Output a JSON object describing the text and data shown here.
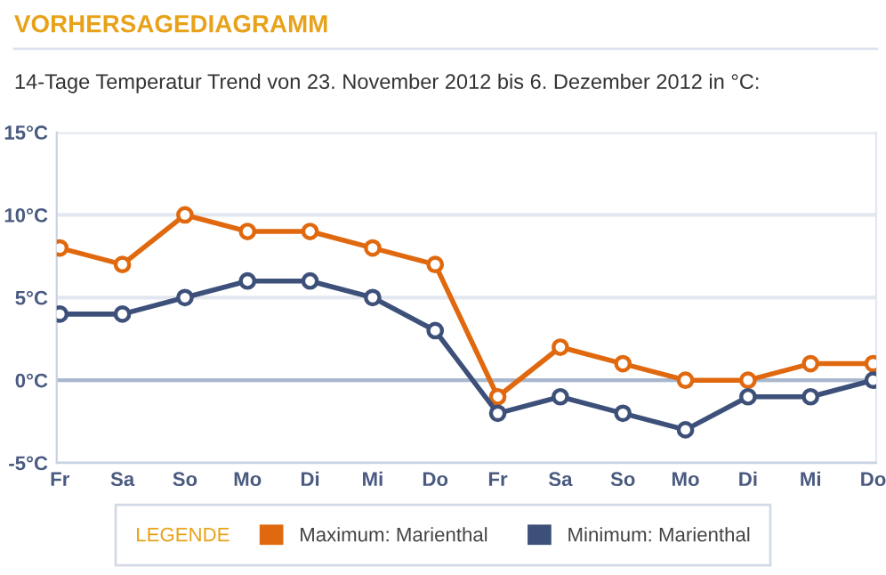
{
  "chart_data": {
    "type": "line",
    "title": "VORHERSAGEDIAGRAMM",
    "subtitle": "14-Tage Temperatur Trend von 23. November 2012 bis 6. Dezember 2012 in °C:",
    "categories": [
      "Fr",
      "Sa",
      "So",
      "Mo",
      "Di",
      "Mi",
      "Do",
      "Fr",
      "Sa",
      "So",
      "Mo",
      "Di",
      "Mi",
      "Do"
    ],
    "series": [
      {
        "name": "Maximum: Marienthal",
        "color": "#e0690f",
        "values": [
          8,
          7,
          10,
          9,
          9,
          8,
          7,
          -1,
          2,
          1,
          0,
          0,
          1,
          1
        ]
      },
      {
        "name": "Minimum: Marienthal",
        "color": "#3d5079",
        "values": [
          4,
          4,
          5,
          6,
          6,
          5,
          3,
          -2,
          -1,
          -2,
          -3,
          -1,
          -1,
          0
        ]
      }
    ],
    "ylim": [
      -5,
      15
    ],
    "yticks": [
      {
        "value": -5,
        "label": "-5°C"
      },
      {
        "value": 0,
        "label": "0°C"
      },
      {
        "value": 5,
        "label": "5°C"
      },
      {
        "value": 10,
        "label": "10°C"
      },
      {
        "value": 15,
        "label": "15°C"
      }
    ],
    "ref_lines": [
      {
        "axis": "y",
        "value": 0,
        "color": "#a9b8cf"
      }
    ],
    "grid": "y",
    "legend": "bottom",
    "legend_title": "LEGENDE",
    "marker": "circle",
    "line_style": "solid"
  }
}
